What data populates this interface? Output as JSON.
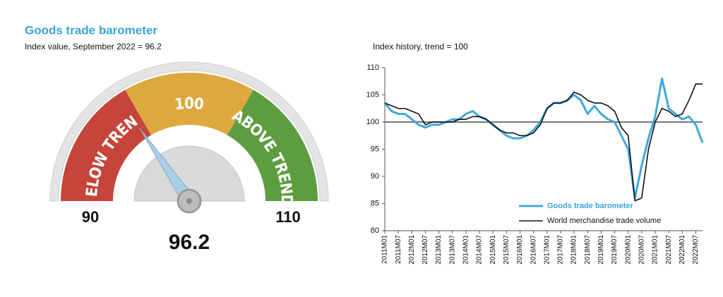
{
  "chart_data": [
    {
      "type": "gauge",
      "title": "Goods trade barometer",
      "subtitle": "Index value, September 2022 = 96.2",
      "value": 96.2,
      "range": [
        90,
        110
      ],
      "ticks": [
        90,
        110
      ],
      "bands": [
        {
          "label": "BELOW TREND",
          "from": 90,
          "to": 96.67,
          "color": "#c6443a"
        },
        {
          "label": "100",
          "from": 96.67,
          "to": 103.33,
          "color": "#dda93e"
        },
        {
          "label": "ABOVE TREND",
          "from": 103.33,
          "to": 110,
          "color": "#5d9d3f"
        }
      ],
      "needle_color": "#a9cfe8"
    },
    {
      "type": "line",
      "title": "Index history, trend = 100",
      "categories": [
        "2011M01",
        null,
        "2011M07",
        null,
        "2012M01",
        null,
        "2012M07",
        null,
        "2013M01",
        null,
        "2013M07",
        null,
        "2014M01",
        null,
        "2014M07",
        null,
        "2015M01",
        null,
        "2015M07",
        null,
        "2016M01",
        null,
        "2016M07",
        null,
        "2017M01",
        null,
        "2017M07",
        null,
        "2018M01",
        null,
        "2018M07",
        null,
        "2019M01",
        null,
        "2019M07",
        null,
        "2020M01",
        null,
        "2020M07",
        null,
        "2021M01",
        null,
        "2021M07",
        null,
        "2022M01",
        null,
        "2022M07",
        null
      ],
      "series": [
        {
          "name": "Goods trade barometer",
          "color": "#3fa9dd",
          "width": 3,
          "values": [
            103.5,
            102,
            101.5,
            101.5,
            100.5,
            99.5,
            99,
            99.5,
            99.5,
            100,
            100.5,
            100.5,
            101.5,
            102,
            101,
            100.5,
            99.5,
            98.5,
            97.5,
            97,
            97,
            97.5,
            98.5,
            100,
            102.5,
            103.5,
            103.5,
            104,
            105,
            104,
            101.5,
            103,
            101.5,
            100.5,
            100,
            97.5,
            95,
            86,
            92,
            97,
            101,
            108,
            102.5,
            101.5,
            100.5,
            101,
            99.5,
            96.2
          ]
        },
        {
          "name": "World merchandise trade volume",
          "color": "#111111",
          "width": 1.6,
          "values": [
            103.5,
            103,
            102.5,
            102.5,
            102,
            101.5,
            99.5,
            100,
            100,
            100,
            100,
            100.5,
            100.5,
            101,
            101,
            100.5,
            99.5,
            98.5,
            98,
            98,
            97.5,
            97.5,
            98,
            99.5,
            102.5,
            103.5,
            103.5,
            104,
            105.5,
            105,
            104,
            103.5,
            103.5,
            103,
            102,
            99,
            97.5,
            85.5,
            86,
            95,
            100,
            102.5,
            102,
            101,
            101.5,
            104,
            107,
            107
          ]
        }
      ],
      "ylim": [
        80,
        110
      ],
      "yticks": [
        80,
        85,
        90,
        95,
        100,
        105,
        110
      ],
      "reference_line": 100,
      "legend": "lower right",
      "grid": false
    }
  ]
}
